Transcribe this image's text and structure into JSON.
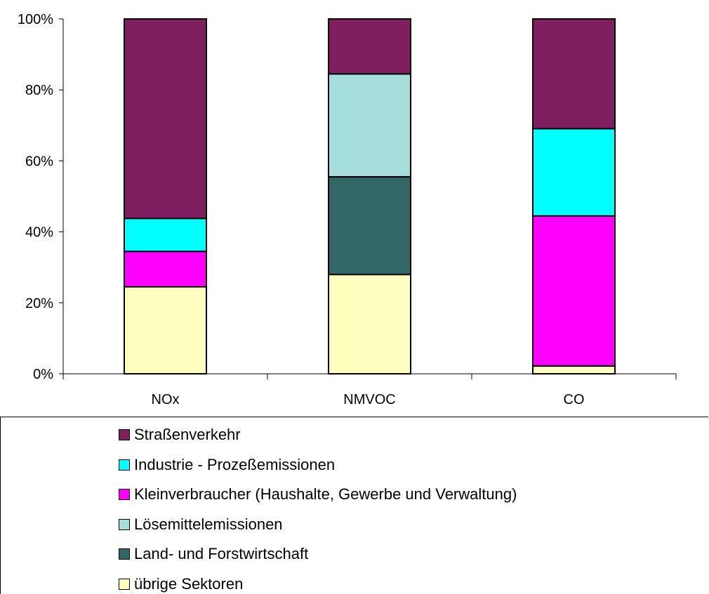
{
  "chart_data": {
    "type": "bar",
    "stacked": true,
    "percent": true,
    "categories": [
      "NOx",
      "NMVOC",
      "CO"
    ],
    "ylim": [
      0,
      100
    ],
    "yticks": [
      "0%",
      "20%",
      "40%",
      "60%",
      "80%",
      "100%"
    ],
    "yticks_values": [
      0,
      20,
      40,
      60,
      80,
      100
    ],
    "grid": false,
    "legend_position": "bottom",
    "series": [
      {
        "name": "übrige Sektoren",
        "color": "#FFFFC0",
        "values": [
          24.5,
          28,
          2.2
        ]
      },
      {
        "name": "Land- und Forstwirtschaft",
        "color": "#336666",
        "values": [
          0,
          27.5,
          0
        ]
      },
      {
        "name": "Lösemittelemissionen",
        "color": "#A6DEDE",
        "values": [
          0,
          29,
          0
        ]
      },
      {
        "name": "Kleinverbraucher (Haushalte, Gewerbe und Verwaltung)",
        "color": "#FF00FF",
        "values": [
          10,
          0,
          42.3
        ]
      },
      {
        "name": "Industrie - Prozeßemissionen",
        "color": "#00FFFF",
        "values": [
          9.3,
          0,
          24.6
        ]
      },
      {
        "name": "Straßenverkehr",
        "color": "#7F1F5F",
        "values": [
          56.2,
          15.5,
          30.9
        ]
      }
    ],
    "legend_order": [
      5,
      4,
      3,
      2,
      1,
      0
    ]
  }
}
